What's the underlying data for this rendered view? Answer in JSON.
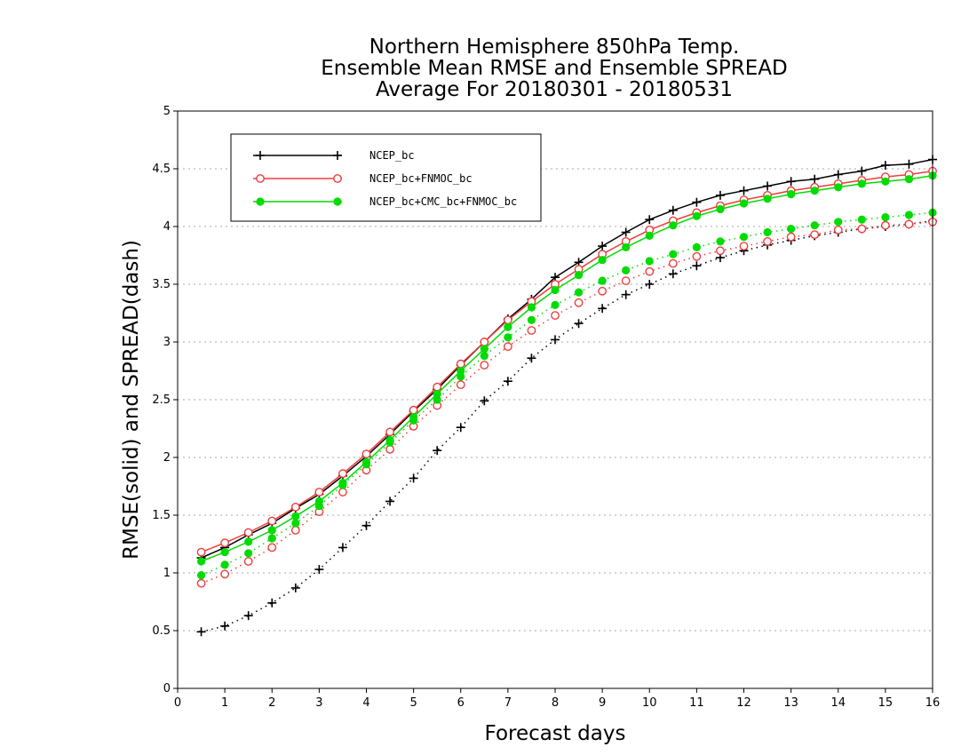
{
  "chart_data": {
    "type": "line",
    "title_lines": [
      "Northern Hemisphere 850hPa Temp.",
      "Ensemble Mean RMSE and Ensemble SPREAD",
      "Average For 20180301 - 20180531"
    ],
    "xlabel": "Forecast days",
    "ylabel": "RMSE(solid) and SPREAD(dash)",
    "xlim": [
      0,
      16
    ],
    "ylim": [
      0,
      5
    ],
    "xticks": [
      "0",
      "1",
      "2",
      "3",
      "4",
      "5",
      "6",
      "7",
      "8",
      "9",
      "10",
      "11",
      "12",
      "13",
      "14",
      "15",
      "16"
    ],
    "yticks": [
      "0",
      "0.5",
      "1",
      "1.5",
      "2",
      "2.5",
      "3",
      "3.5",
      "4",
      "4.5",
      "5"
    ],
    "grid": "horizontal dotted",
    "legend_position": "top-left",
    "x": [
      0.5,
      1,
      1.5,
      2,
      2.5,
      3,
      3.5,
      4,
      4.5,
      5,
      5.5,
      6,
      6.5,
      7,
      7.5,
      8,
      8.5,
      9,
      9.5,
      10,
      10.5,
      11,
      11.5,
      12,
      12.5,
      13,
      13.5,
      14,
      14.5,
      15,
      15.5,
      16
    ],
    "series": [
      {
        "name": "NCEP_bc",
        "metric": "RMSE",
        "style": "solid",
        "color": "#000000",
        "marker": "plus",
        "values": [
          1.13,
          1.22,
          1.33,
          1.43,
          1.56,
          1.68,
          1.84,
          2.01,
          2.2,
          2.4,
          2.59,
          2.8,
          3.0,
          3.2,
          3.37,
          3.56,
          3.69,
          3.83,
          3.95,
          4.06,
          4.14,
          4.21,
          4.27,
          4.31,
          4.35,
          4.39,
          4.41,
          4.45,
          4.48,
          4.53,
          4.54,
          4.58
        ]
      },
      {
        "name": "NCEP_bc+FNMOC_bc",
        "metric": "RMSE",
        "style": "solid",
        "color": "#f03c3c",
        "marker": "open-circle",
        "values": [
          1.18,
          1.26,
          1.35,
          1.45,
          1.57,
          1.7,
          1.86,
          2.03,
          2.22,
          2.41,
          2.61,
          2.81,
          3.0,
          3.19,
          3.35,
          3.5,
          3.63,
          3.76,
          3.87,
          3.97,
          4.05,
          4.12,
          4.18,
          4.23,
          4.27,
          4.31,
          4.34,
          4.37,
          4.4,
          4.43,
          4.45,
          4.48
        ]
      },
      {
        "name": "NCEP_bc+CMC_bc+FNMOC_bc",
        "metric": "RMSE",
        "style": "solid",
        "color": "#00dc00",
        "marker": "filled-circle",
        "values": [
          1.1,
          1.18,
          1.27,
          1.37,
          1.49,
          1.62,
          1.78,
          1.96,
          2.15,
          2.35,
          2.55,
          2.75,
          2.94,
          3.13,
          3.3,
          3.45,
          3.58,
          3.71,
          3.82,
          3.92,
          4.01,
          4.09,
          4.15,
          4.2,
          4.24,
          4.28,
          4.31,
          4.34,
          4.37,
          4.39,
          4.41,
          4.44
        ]
      },
      {
        "name": "NCEP_bc",
        "metric": "SPREAD",
        "style": "dotted",
        "color": "#000000",
        "marker": "plus",
        "values": [
          0.49,
          0.54,
          0.63,
          0.74,
          0.87,
          1.03,
          1.22,
          1.41,
          1.62,
          1.82,
          2.06,
          2.26,
          2.49,
          2.66,
          2.86,
          3.02,
          3.16,
          3.29,
          3.41,
          3.5,
          3.59,
          3.66,
          3.73,
          3.79,
          3.84,
          3.88,
          3.92,
          3.95,
          3.98,
          4.0,
          4.02,
          4.05
        ]
      },
      {
        "name": "NCEP_bc+FNMOC_bc",
        "metric": "SPREAD",
        "style": "dotted",
        "color": "#f03c3c",
        "marker": "open-circle",
        "values": [
          0.91,
          0.99,
          1.1,
          1.22,
          1.37,
          1.53,
          1.7,
          1.89,
          2.07,
          2.27,
          2.45,
          2.63,
          2.8,
          2.96,
          3.1,
          3.23,
          3.34,
          3.44,
          3.53,
          3.61,
          3.68,
          3.74,
          3.79,
          3.83,
          3.87,
          3.91,
          3.93,
          3.97,
          3.98,
          4.01,
          4.02,
          4.04
        ]
      },
      {
        "name": "NCEP_bc+CMC_bc+FNMOC_bc",
        "metric": "SPREAD",
        "style": "dotted",
        "color": "#00dc00",
        "marker": "filled-circle",
        "values": [
          0.98,
          1.07,
          1.17,
          1.3,
          1.43,
          1.58,
          1.76,
          1.94,
          2.13,
          2.32,
          2.5,
          2.7,
          2.88,
          3.04,
          3.19,
          3.32,
          3.43,
          3.53,
          3.62,
          3.7,
          3.76,
          3.82,
          3.87,
          3.91,
          3.95,
          3.98,
          4.01,
          4.04,
          4.06,
          4.08,
          4.1,
          4.12
        ]
      }
    ]
  }
}
